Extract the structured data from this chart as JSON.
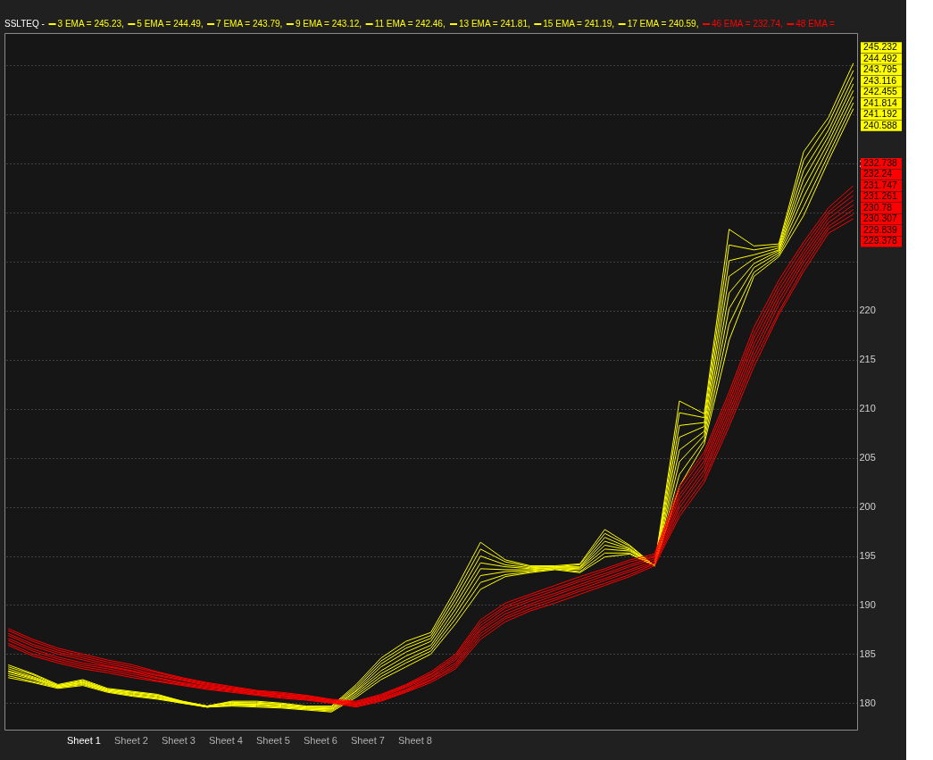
{
  "chart_data": {
    "type": "line",
    "title": "SSLTEQ -",
    "categories": [
      null,
      null,
      null,
      null,
      null,
      null,
      null,
      null,
      null,
      null,
      null,
      null,
      null,
      null,
      null,
      null,
      null,
      null,
      null,
      null,
      null,
      null,
      null,
      null,
      null,
      null,
      null,
      null,
      null,
      null,
      null,
      null,
      null,
      null,
      null
    ],
    "ylim": [
      177.3,
      248.3
    ],
    "yticks": [
      180,
      185,
      190,
      195,
      200,
      205,
      210,
      215,
      220,
      {
        "value": 225,
        "label": null
      },
      {
        "value": 230,
        "label": null
      },
      235,
      {
        "value": 240,
        "label": null
      },
      {
        "value": 245,
        "label": null
      }
    ],
    "grid": "y",
    "tick_labels": "y",
    "legend": "top left",
    "line_style": "solid",
    "annotations": [
      "Sheet 1",
      "Sheet 2",
      "Sheet 3",
      "Sheet 4",
      "Sheet 5",
      "Sheet 6",
      "Sheet 7",
      "Sheet 8"
    ],
    "series": [
      {
        "name": "3 EMA = 245.23,",
        "color": "#ffff00",
        "values": [
          183.9,
          183.0,
          181.9,
          182.4,
          181.5,
          181.2,
          180.9,
          180.2,
          179.7,
          180.2,
          180.2,
          180.0,
          179.7,
          179.7,
          181.9,
          184.6,
          186.3,
          187.2,
          191.6,
          196.4,
          194.6,
          194.0,
          194.0,
          194.2,
          197.7,
          196.1,
          194.0,
          210.8,
          209.5,
          228.3,
          226.6,
          226.8,
          236.2,
          239.7,
          245.232
        ],
        "value_labels": [
          null,
          null,
          null,
          null,
          null,
          null,
          null,
          null,
          null,
          null,
          null,
          null,
          null,
          null,
          null,
          null,
          null,
          null,
          null,
          null,
          null,
          null,
          null,
          null,
          null,
          null,
          null,
          null,
          null,
          null,
          null,
          null,
          null,
          null,
          "245.232"
        ]
      },
      {
        "name": "5 EMA = 244.49,",
        "color": "#ffff00",
        "values": [
          183.7,
          182.9,
          181.8,
          182.3,
          181.4,
          181.1,
          180.8,
          180.2,
          179.7,
          180.1,
          180.1,
          179.9,
          179.6,
          179.6,
          181.7,
          184.3,
          185.9,
          186.9,
          191.1,
          195.7,
          194.4,
          193.9,
          193.9,
          194.1,
          197.3,
          196.0,
          194.0,
          209.6,
          209.1,
          226.7,
          226.2,
          226.6,
          235.3,
          239.1,
          244.492
        ],
        "value_labels": [
          null,
          null,
          null,
          null,
          null,
          null,
          null,
          null,
          null,
          null,
          null,
          null,
          null,
          null,
          null,
          null,
          null,
          null,
          null,
          null,
          null,
          null,
          null,
          null,
          null,
          null,
          null,
          null,
          null,
          null,
          null,
          null,
          null,
          null,
          "244.492"
        ]
      },
      {
        "name": "7 EMA = 243.79,",
        "color": "#ffff00",
        "values": [
          183.5,
          182.7,
          181.8,
          182.2,
          181.4,
          181.1,
          180.8,
          180.1,
          179.7,
          180.1,
          180.0,
          179.9,
          179.6,
          179.5,
          181.5,
          184.0,
          185.6,
          186.6,
          190.6,
          195.0,
          194.1,
          193.8,
          193.9,
          193.9,
          196.9,
          195.8,
          194.0,
          208.3,
          208.6,
          225.1,
          225.7,
          226.4,
          234.3,
          238.4,
          243.795
        ],
        "value_labels": [
          null,
          null,
          null,
          null,
          null,
          null,
          null,
          null,
          null,
          null,
          null,
          null,
          null,
          null,
          null,
          null,
          null,
          null,
          null,
          null,
          null,
          null,
          null,
          null,
          null,
          null,
          null,
          null,
          null,
          null,
          null,
          null,
          null,
          null,
          "243.795"
        ]
      },
      {
        "name": "9 EMA = 243.12,",
        "color": "#ffff00",
        "values": [
          183.3,
          182.6,
          181.7,
          182.1,
          181.3,
          181.0,
          180.7,
          180.1,
          179.7,
          180.0,
          179.9,
          179.8,
          179.5,
          179.4,
          181.3,
          183.7,
          185.2,
          186.3,
          190.1,
          194.3,
          193.9,
          193.7,
          193.8,
          193.8,
          196.5,
          195.7,
          194.0,
          207.1,
          208.2,
          223.5,
          225.3,
          226.2,
          233.4,
          237.8,
          243.116
        ],
        "value_labels": [
          null,
          null,
          null,
          null,
          null,
          null,
          null,
          null,
          null,
          null,
          null,
          null,
          null,
          null,
          null,
          null,
          null,
          null,
          null,
          null,
          null,
          null,
          null,
          null,
          null,
          null,
          null,
          null,
          null,
          null,
          null,
          null,
          null,
          null,
          "243.116"
        ]
      },
      {
        "name": "11 EMA = 242.46,",
        "color": "#ffff00",
        "values": [
          183.2,
          182.5,
          181.7,
          182.1,
          181.3,
          180.9,
          180.6,
          180.1,
          179.6,
          179.9,
          179.9,
          179.7,
          179.5,
          179.4,
          181.2,
          183.3,
          184.8,
          185.9,
          189.6,
          193.7,
          193.6,
          193.6,
          193.8,
          193.7,
          196.1,
          195.6,
          194.0,
          205.8,
          207.7,
          221.8,
          224.8,
          226.1,
          232.5,
          237.2,
          242.455
        ],
        "value_labels": [
          null,
          null,
          null,
          null,
          null,
          null,
          null,
          null,
          null,
          null,
          null,
          null,
          null,
          null,
          null,
          null,
          null,
          null,
          null,
          null,
          null,
          null,
          null,
          null,
          null,
          null,
          null,
          null,
          null,
          null,
          null,
          null,
          null,
          null,
          "242.455"
        ]
      },
      {
        "name": "13 EMA = 241.81,",
        "color": "#ffff00",
        "values": [
          183.0,
          182.4,
          181.6,
          182.0,
          181.2,
          180.8,
          180.5,
          180.1,
          179.6,
          179.8,
          179.8,
          179.6,
          179.4,
          179.3,
          181.0,
          183.0,
          184.4,
          185.6,
          189.1,
          193.0,
          193.4,
          193.5,
          193.7,
          193.6,
          195.7,
          195.5,
          194.0,
          204.6,
          207.3,
          220.2,
          224.4,
          225.9,
          231.6,
          236.6,
          241.814
        ],
        "value_labels": [
          null,
          null,
          null,
          null,
          null,
          null,
          null,
          null,
          null,
          null,
          null,
          null,
          null,
          null,
          null,
          null,
          null,
          null,
          null,
          null,
          null,
          null,
          null,
          null,
          null,
          null,
          null,
          null,
          null,
          null,
          null,
          null,
          null,
          null,
          "241.814"
        ]
      },
      {
        "name": "15 EMA = 241.19,",
        "color": "#ffff00",
        "values": [
          182.8,
          182.2,
          181.6,
          181.9,
          181.2,
          180.8,
          180.5,
          180.0,
          179.6,
          179.8,
          179.7,
          179.6,
          179.4,
          179.2,
          180.8,
          182.7,
          184.1,
          185.3,
          188.6,
          192.3,
          193.1,
          193.4,
          193.7,
          193.4,
          195.3,
          195.3,
          194.0,
          203.3,
          206.8,
          218.6,
          223.9,
          225.7,
          230.6,
          235.9,
          241.192
        ],
        "value_labels": [
          null,
          null,
          null,
          null,
          null,
          null,
          null,
          null,
          null,
          null,
          null,
          null,
          null,
          null,
          null,
          null,
          null,
          null,
          null,
          null,
          null,
          null,
          null,
          null,
          null,
          null,
          null,
          null,
          null,
          null,
          null,
          null,
          null,
          null,
          "241.192"
        ]
      },
      {
        "name": "17 EMA = 240.59,",
        "color": "#ffff00",
        "values": [
          182.6,
          182.1,
          181.5,
          181.8,
          181.1,
          180.7,
          180.4,
          180.0,
          179.6,
          179.7,
          179.6,
          179.5,
          179.3,
          179.1,
          180.6,
          182.4,
          183.7,
          185.0,
          188.1,
          191.6,
          192.9,
          193.3,
          193.6,
          193.3,
          194.9,
          195.2,
          194.0,
          202.1,
          206.4,
          217.0,
          223.5,
          225.5,
          229.7,
          235.3,
          240.588
        ],
        "value_labels": [
          null,
          null,
          null,
          null,
          null,
          null,
          null,
          null,
          null,
          null,
          null,
          null,
          null,
          null,
          null,
          null,
          null,
          null,
          null,
          null,
          null,
          null,
          null,
          null,
          null,
          null,
          null,
          null,
          null,
          null,
          null,
          null,
          null,
          null,
          "240.588"
        ]
      },
      {
        "name": "46 EMA = 232.74,",
        "color": "#ff0000",
        "values": [
          187.6,
          186.5,
          185.6,
          185.0,
          184.4,
          183.9,
          183.2,
          182.6,
          182.1,
          181.7,
          181.3,
          181.1,
          180.8,
          180.4,
          180.2,
          180.9,
          181.9,
          183.2,
          185.0,
          188.5,
          190.2,
          191.1,
          192.0,
          192.9,
          193.7,
          194.6,
          195.2,
          202.1,
          205.6,
          211.7,
          218.3,
          223.1,
          227.0,
          230.5,
          232.738
        ],
        "value_labels": [
          null,
          null,
          null,
          null,
          null,
          null,
          null,
          null,
          null,
          null,
          null,
          null,
          null,
          null,
          null,
          null,
          null,
          null,
          null,
          null,
          null,
          null,
          null,
          null,
          null,
          null,
          null,
          null,
          null,
          null,
          null,
          null,
          null,
          null,
          "232.738"
        ]
      },
      {
        "name": "48 EMA =",
        "color": "#ff0000",
        "values": [
          187.4,
          186.3,
          185.4,
          184.8,
          184.2,
          183.7,
          183.1,
          182.5,
          182.0,
          181.6,
          181.2,
          181.0,
          180.7,
          180.3,
          180.1,
          180.8,
          181.8,
          183.0,
          184.8,
          188.2,
          189.9,
          190.9,
          191.7,
          192.6,
          193.5,
          194.4,
          195.0,
          201.7,
          205.2,
          211.2,
          217.7,
          222.6,
          226.6,
          230.1,
          232.24
        ],
        "value_labels": [
          null,
          null,
          null,
          null,
          null,
          null,
          null,
          null,
          null,
          null,
          null,
          null,
          null,
          null,
          null,
          null,
          null,
          null,
          null,
          null,
          null,
          null,
          null,
          null,
          null,
          null,
          null,
          null,
          null,
          null,
          null,
          null,
          null,
          null,
          "232.24"
        ]
      },
      {
        "color": "#ff0000",
        "values": [
          187.1,
          186.0,
          185.2,
          184.6,
          184.0,
          183.5,
          182.9,
          182.4,
          181.9,
          181.5,
          181.2,
          180.9,
          180.7,
          180.3,
          180.0,
          180.7,
          181.7,
          182.9,
          184.6,
          187.9,
          189.7,
          190.6,
          191.5,
          192.4,
          193.2,
          194.1,
          194.9,
          201.2,
          204.7,
          210.7,
          217.2,
          222.1,
          226.1,
          229.8,
          231.747
        ],
        "value_labels": [
          null,
          null,
          null,
          null,
          null,
          null,
          null,
          null,
          null,
          null,
          null,
          null,
          null,
          null,
          null,
          null,
          null,
          null,
          null,
          null,
          null,
          null,
          null,
          null,
          null,
          null,
          null,
          null,
          null,
          null,
          null,
          null,
          null,
          null,
          "231.747"
        ]
      },
      {
        "color": "#ff0000",
        "values": [
          186.9,
          185.8,
          185.0,
          184.4,
          183.8,
          183.3,
          182.8,
          182.3,
          181.8,
          181.4,
          181.1,
          180.8,
          180.6,
          180.2,
          179.9,
          180.6,
          181.6,
          182.7,
          184.4,
          187.6,
          189.4,
          190.4,
          191.2,
          192.1,
          193.0,
          193.9,
          194.7,
          200.8,
          204.3,
          210.2,
          216.6,
          221.6,
          225.7,
          229.4,
          231.261
        ],
        "value_labels": [
          null,
          null,
          null,
          null,
          null,
          null,
          null,
          null,
          null,
          null,
          null,
          null,
          null,
          null,
          null,
          null,
          null,
          null,
          null,
          null,
          null,
          null,
          null,
          null,
          null,
          null,
          null,
          null,
          null,
          null,
          null,
          null,
          null,
          null,
          "231.261"
        ]
      },
      {
        "color": "#ff0000",
        "values": [
          186.6,
          185.5,
          184.7,
          184.1,
          183.7,
          183.2,
          182.6,
          182.1,
          181.7,
          181.4,
          181.0,
          180.8,
          180.5,
          180.2,
          179.9,
          180.5,
          181.4,
          182.6,
          184.1,
          187.4,
          189.1,
          190.1,
          191.0,
          191.9,
          192.7,
          193.6,
          194.5,
          200.3,
          203.8,
          209.7,
          216.0,
          221.1,
          225.3,
          229.0,
          230.78
        ],
        "value_labels": [
          null,
          null,
          null,
          null,
          null,
          null,
          null,
          null,
          null,
          null,
          null,
          null,
          null,
          null,
          null,
          null,
          null,
          null,
          null,
          null,
          null,
          null,
          null,
          null,
          null,
          null,
          null,
          null,
          null,
          null,
          null,
          null,
          null,
          null,
          "230.78"
        ]
      },
      {
        "color": "#ff0000",
        "values": [
          186.4,
          185.3,
          184.5,
          183.9,
          183.5,
          183.0,
          182.5,
          182.0,
          181.6,
          181.3,
          180.9,
          180.7,
          180.4,
          180.1,
          179.8,
          180.4,
          181.3,
          182.4,
          183.9,
          187.1,
          188.8,
          189.9,
          190.7,
          191.6,
          192.5,
          193.4,
          194.3,
          199.9,
          203.4,
          209.2,
          215.4,
          220.6,
          224.9,
          228.6,
          230.307
        ],
        "value_labels": [
          null,
          null,
          null,
          null,
          null,
          null,
          null,
          null,
          null,
          null,
          null,
          null,
          null,
          null,
          null,
          null,
          null,
          null,
          null,
          null,
          null,
          null,
          null,
          null,
          null,
          null,
          null,
          null,
          null,
          null,
          null,
          null,
          null,
          null,
          "230.307"
        ]
      },
      {
        "color": "#ff0000",
        "values": [
          186.1,
          185.0,
          184.3,
          183.7,
          183.3,
          182.8,
          182.3,
          181.9,
          181.5,
          181.2,
          180.9,
          180.6,
          180.4,
          180.1,
          179.7,
          180.3,
          181.2,
          182.3,
          183.7,
          186.8,
          188.6,
          189.6,
          190.5,
          191.4,
          192.2,
          193.1,
          194.2,
          199.4,
          202.9,
          208.7,
          214.9,
          219.9,
          224.4,
          228.3,
          229.839
        ],
        "value_labels": [
          null,
          null,
          null,
          null,
          null,
          null,
          null,
          null,
          null,
          null,
          null,
          null,
          null,
          null,
          null,
          null,
          null,
          null,
          null,
          null,
          null,
          null,
          null,
          null,
          null,
          null,
          null,
          null,
          null,
          null,
          null,
          null,
          null,
          null,
          "229.839"
        ]
      },
      {
        "color": "#ff0000",
        "values": [
          185.9,
          184.8,
          184.1,
          183.5,
          183.1,
          182.6,
          182.2,
          181.8,
          181.4,
          181.1,
          180.8,
          180.5,
          180.3,
          180.0,
          179.6,
          180.2,
          181.1,
          182.1,
          183.5,
          186.5,
          188.3,
          189.4,
          190.2,
          191.1,
          192.0,
          192.9,
          194.0,
          199.0,
          202.5,
          208.2,
          214.3,
          219.6,
          224.0,
          227.9,
          229.378
        ],
        "value_labels": [
          null,
          null,
          null,
          null,
          null,
          null,
          null,
          null,
          null,
          null,
          null,
          null,
          null,
          null,
          null,
          null,
          null,
          null,
          null,
          null,
          null,
          null,
          null,
          null,
          null,
          null,
          null,
          null,
          null,
          null,
          null,
          null,
          null,
          null,
          "229.378"
        ]
      }
    ]
  }
}
